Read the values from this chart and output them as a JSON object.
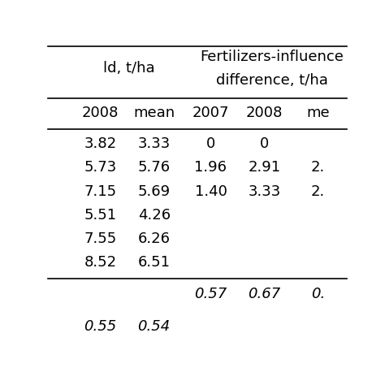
{
  "header_fert": "Fertilizers-influence",
  "header_diff": "difference, t/ha",
  "header_yield": "ld, t/ha",
  "col_headers": [
    "2008",
    "mean",
    "2007",
    "2008",
    "me"
  ],
  "rows": [
    [
      "3.82",
      "3.33",
      "0",
      "0",
      ""
    ],
    [
      "5.73",
      "5.76",
      "1.96",
      "2.91",
      "2."
    ],
    [
      "7.15",
      "5.69",
      "1.40",
      "3.33",
      "2."
    ],
    [
      "5.51",
      "4.26",
      "",
      "",
      ""
    ],
    [
      "7.55",
      "6.26",
      "",
      "",
      ""
    ],
    [
      "8.52",
      "6.51",
      "",
      "",
      ""
    ]
  ],
  "lsd_row": [
    "",
    "",
    "0.57",
    "0.67",
    "0."
  ],
  "bottom_row": [
    "0.55",
    "0.54",
    "",
    "",
    ""
  ],
  "bg_color": "#ffffff",
  "text_color": "#000000",
  "font_size": 13
}
